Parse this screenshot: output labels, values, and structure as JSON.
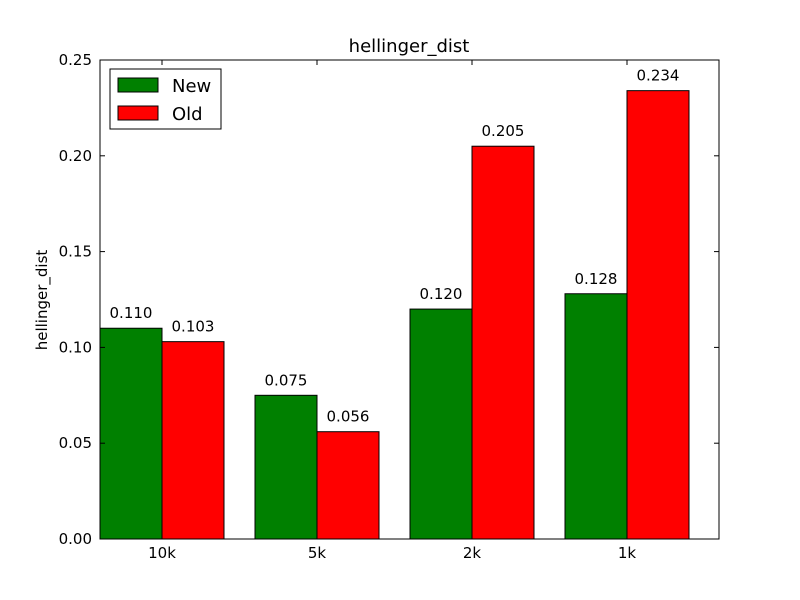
{
  "chart_data": {
    "type": "bar",
    "title": "hellinger_dist",
    "xlabel": "",
    "ylabel": "hellinger_dist",
    "categories": [
      "10k",
      "5k",
      "2k",
      "1k"
    ],
    "series": [
      {
        "name": "New",
        "color": "#008000",
        "values": [
          0.11,
          0.075,
          0.12,
          0.128
        ],
        "labels": [
          "0.110",
          "0.075",
          "0.120",
          "0.128"
        ]
      },
      {
        "name": "Old",
        "color": "#ff0000",
        "values": [
          0.103,
          0.056,
          0.205,
          0.234
        ],
        "labels": [
          "0.103",
          "0.056",
          "0.205",
          "0.234"
        ]
      }
    ],
    "ylim": [
      0,
      0.25
    ],
    "yticks": [
      0.0,
      0.05,
      0.1,
      0.15,
      0.2,
      0.25
    ],
    "ytick_labels": [
      "0.00",
      "0.05",
      "0.10",
      "0.15",
      "0.20",
      "0.25"
    ],
    "grid": false,
    "legend_position": "top-left"
  }
}
